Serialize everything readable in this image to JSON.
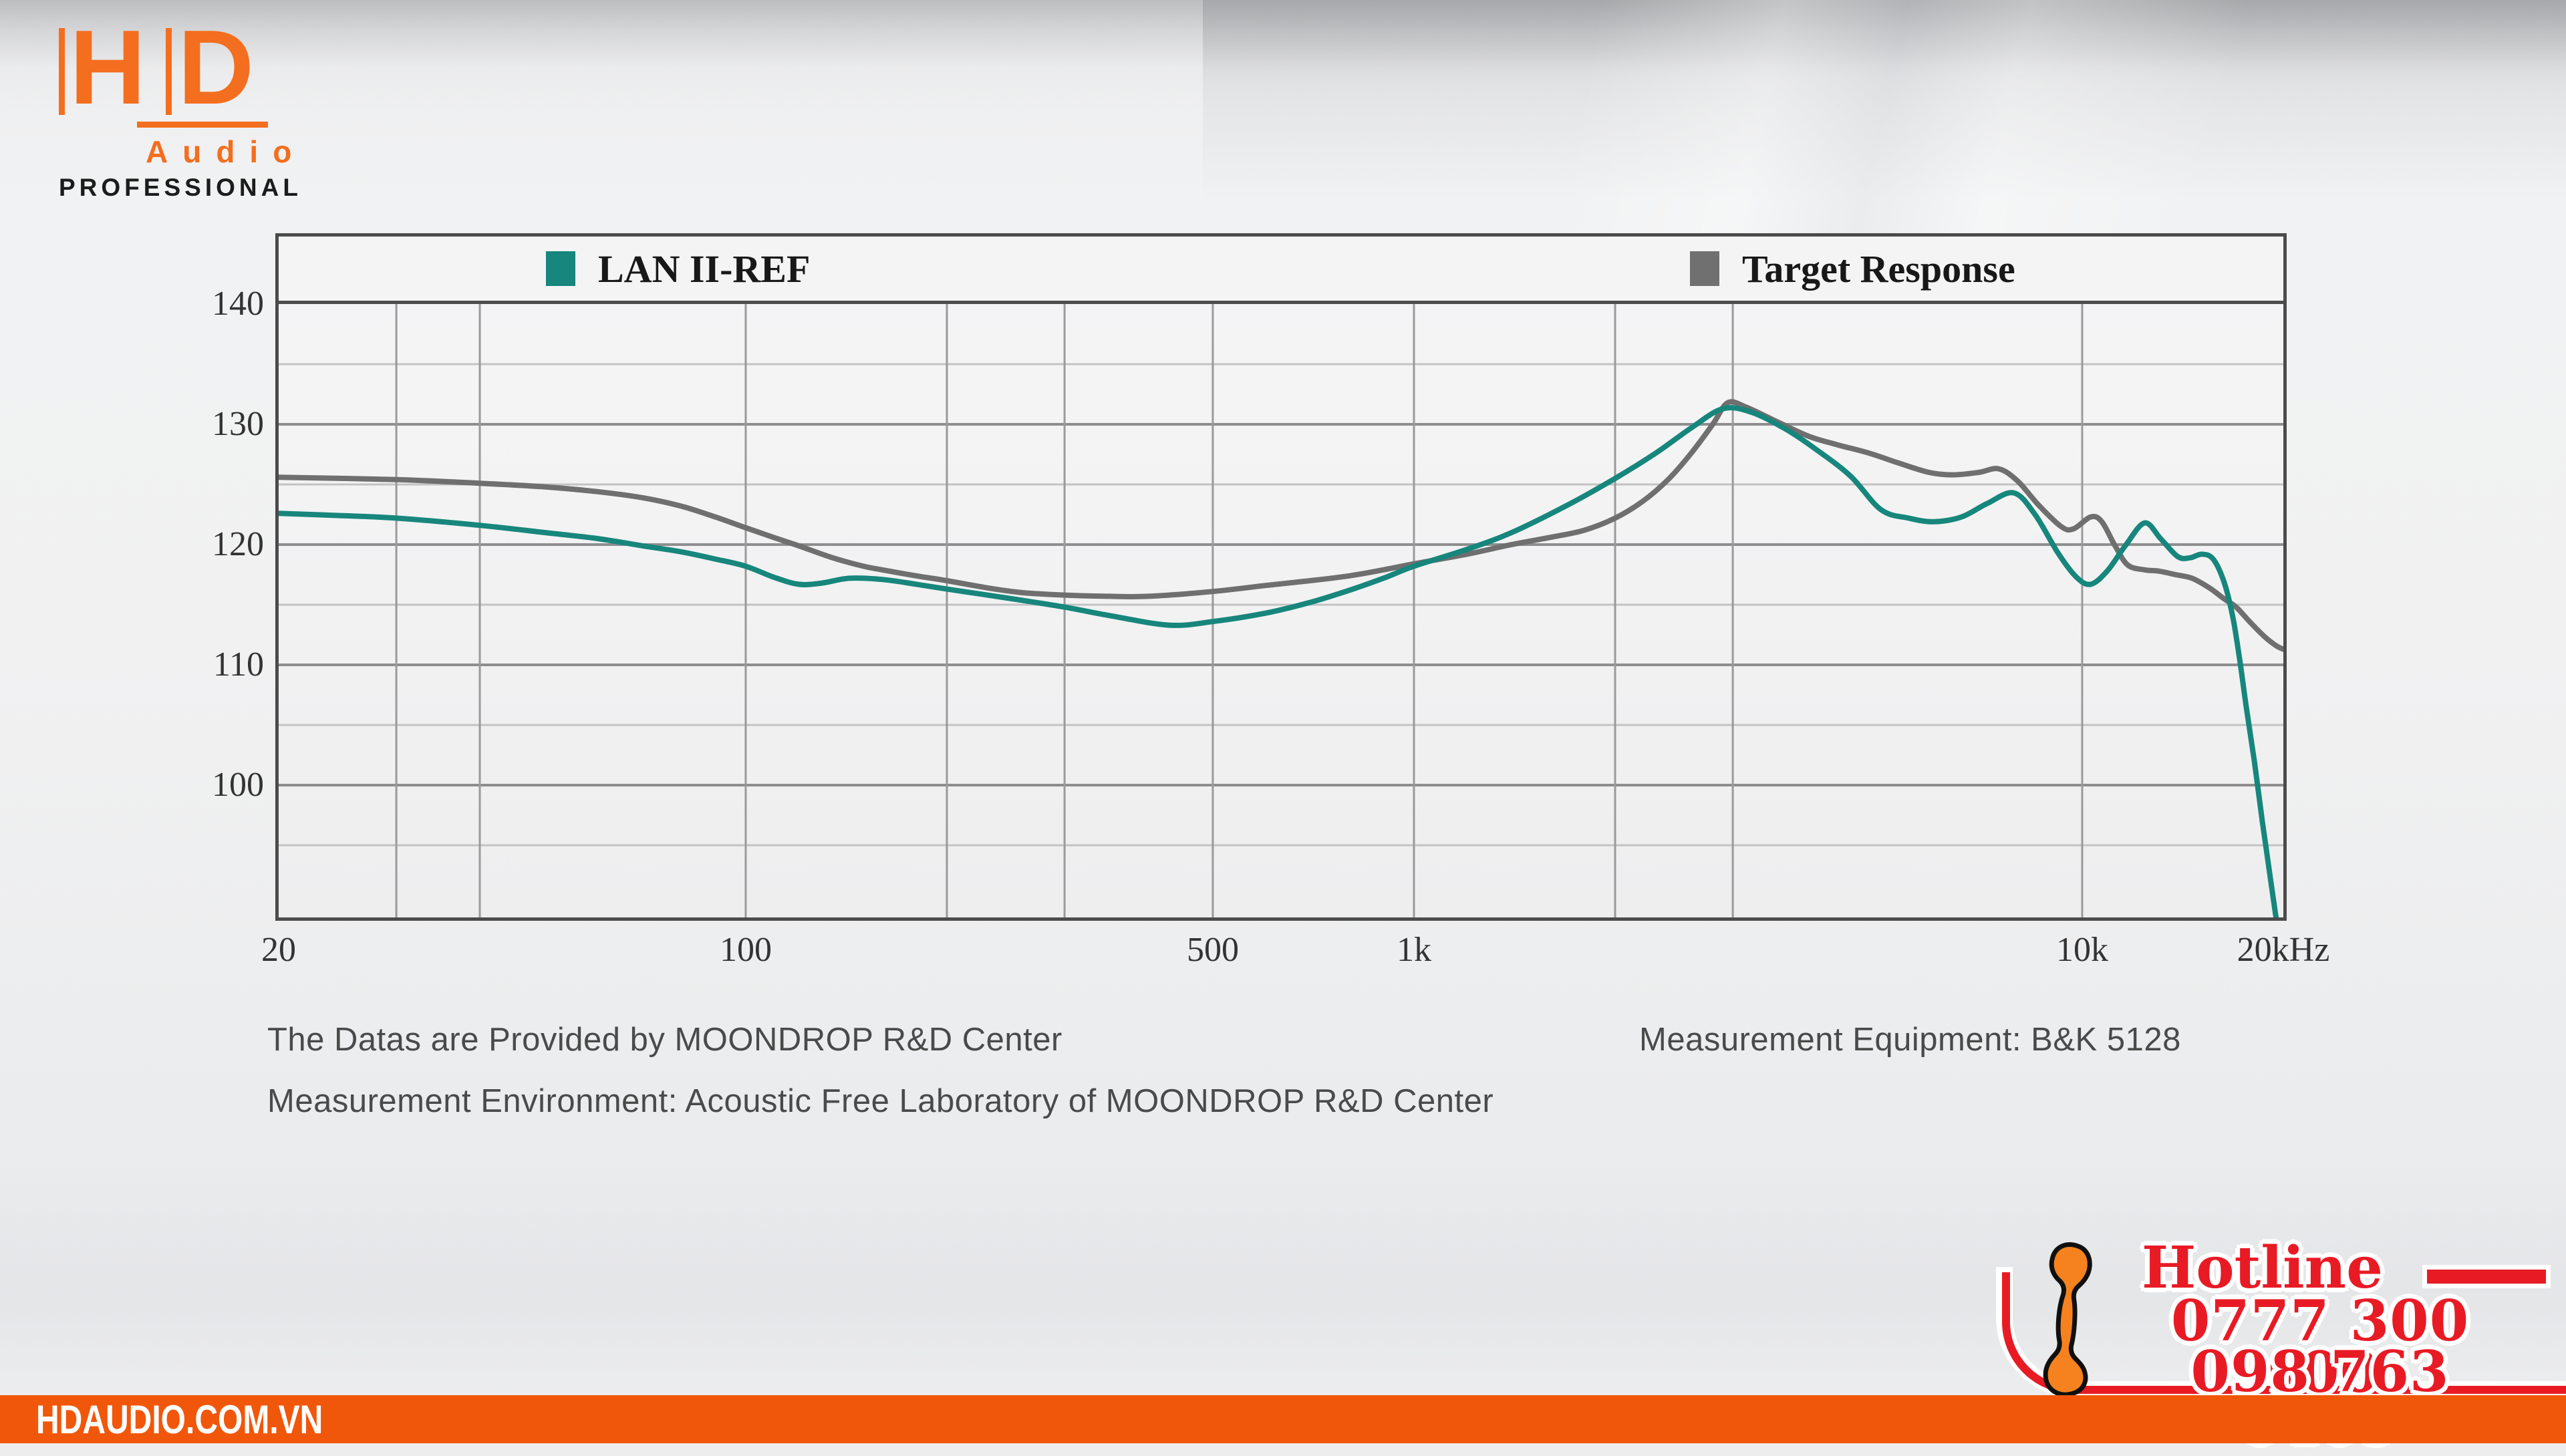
{
  "branding": {
    "hd": "HD",
    "audio": "Audio",
    "professional": "PROFESSIONAL"
  },
  "footer": {
    "website": "HDAUDIO.COM.VN"
  },
  "hotline": {
    "label": "Hotline",
    "phone1": "0777 300 400",
    "phone2": "098 763 0409"
  },
  "annotations": {
    "provided_by": "The Datas are Provided by MOONDROP R&D Center",
    "equipment": "Measurement Equipment: B&K 5128",
    "environment": "Measurement Environment: Acoustic Free Laboratory of MOONDROP R&D Center"
  },
  "colors": {
    "brand_orange": "#F36E1E",
    "bar_orange": "#F1570B",
    "hotline_red": "#E81B25",
    "phone_orange": "#F5821F",
    "grid_major": "#8e8e8e",
    "grid_minor": "#c3c3c4",
    "grid_vertical": "#9a9a9b",
    "chart_border": "#4b4b4b"
  },
  "chart_data": {
    "type": "line",
    "x_scale": "log",
    "x_unit": "Hz",
    "y_unit": "dB SPL",
    "x_range_hz": [
      20,
      20000
    ],
    "y_range_db": [
      89,
      140
    ],
    "y_major_ticks": [
      140,
      130,
      120,
      110,
      100
    ],
    "y_minor_gridlines": [
      135,
      125,
      115,
      105,
      95
    ],
    "x_gridlines_hz": [
      30,
      40,
      100,
      200,
      300,
      500,
      1000,
      2000,
      3000,
      10000
    ],
    "x_tick_labels": [
      {
        "hz": 20,
        "label": "20"
      },
      {
        "hz": 100,
        "label": "100"
      },
      {
        "hz": 500,
        "label": "500"
      },
      {
        "hz": 1000,
        "label": "1k"
      },
      {
        "hz": 10000,
        "label": "10k"
      },
      {
        "hz": 20000,
        "label": "20kHz"
      }
    ],
    "legend": [
      {
        "name": "LAN II-REF",
        "color": "#17867C"
      },
      {
        "name": "Target Response",
        "color": "#707070"
      }
    ],
    "series": [
      {
        "name": "LAN II-REF",
        "color": "#17867C",
        "points": [
          [
            20,
            122.6
          ],
          [
            25,
            122.4
          ],
          [
            30,
            122.2
          ],
          [
            40,
            121.6
          ],
          [
            50,
            121.0
          ],
          [
            60,
            120.5
          ],
          [
            70,
            119.9
          ],
          [
            80,
            119.4
          ],
          [
            90,
            118.8
          ],
          [
            100,
            118.2
          ],
          [
            110,
            117.3
          ],
          [
            120,
            116.7
          ],
          [
            130,
            116.8
          ],
          [
            143,
            117.2
          ],
          [
            160,
            117.1
          ],
          [
            180,
            116.7
          ],
          [
            200,
            116.3
          ],
          [
            250,
            115.5
          ],
          [
            300,
            114.8
          ],
          [
            350,
            114.1
          ],
          [
            430,
            113.3
          ],
          [
            500,
            113.6
          ],
          [
            600,
            114.3
          ],
          [
            700,
            115.2
          ],
          [
            800,
            116.2
          ],
          [
            900,
            117.2
          ],
          [
            1000,
            118.2
          ],
          [
            1200,
            119.6
          ],
          [
            1400,
            121.0
          ],
          [
            1700,
            123.3
          ],
          [
            2000,
            125.5
          ],
          [
            2300,
            127.6
          ],
          [
            2600,
            129.7
          ],
          [
            2900,
            131.3
          ],
          [
            3200,
            131.0
          ],
          [
            3600,
            129.6
          ],
          [
            4000,
            127.9
          ],
          [
            4500,
            125.7
          ],
          [
            5000,
            122.9
          ],
          [
            5500,
            122.2
          ],
          [
            6000,
            121.9
          ],
          [
            6600,
            122.3
          ],
          [
            7200,
            123.4
          ],
          [
            7900,
            124.3
          ],
          [
            8500,
            122.5
          ],
          [
            9200,
            119.3
          ],
          [
            9800,
            117.3
          ],
          [
            10300,
            116.7
          ],
          [
            10900,
            117.8
          ],
          [
            11600,
            119.9
          ],
          [
            12400,
            121.8
          ],
          [
            13100,
            120.5
          ],
          [
            13900,
            119.0
          ],
          [
            14500,
            118.9
          ],
          [
            15100,
            119.2
          ],
          [
            15700,
            118.8
          ],
          [
            16300,
            116.9
          ],
          [
            16800,
            114.0
          ],
          [
            17200,
            110.5
          ],
          [
            17600,
            106.5
          ],
          [
            18100,
            102.0
          ],
          [
            18600,
            97.0
          ],
          [
            19100,
            92.5
          ],
          [
            19500,
            89.0
          ]
        ]
      },
      {
        "name": "Target Response",
        "color": "#6F6F6F",
        "points": [
          [
            20,
            125.6
          ],
          [
            30,
            125.4
          ],
          [
            40,
            125.1
          ],
          [
            50,
            124.8
          ],
          [
            60,
            124.4
          ],
          [
            70,
            123.9
          ],
          [
            80,
            123.2
          ],
          [
            90,
            122.3
          ],
          [
            100,
            121.4
          ],
          [
            110,
            120.6
          ],
          [
            120,
            119.9
          ],
          [
            135,
            118.9
          ],
          [
            150,
            118.2
          ],
          [
            160,
            117.9
          ],
          [
            180,
            117.4
          ],
          [
            200,
            117.0
          ],
          [
            230,
            116.4
          ],
          [
            260,
            116.0
          ],
          [
            300,
            115.8
          ],
          [
            350,
            115.7
          ],
          [
            400,
            115.7
          ],
          [
            500,
            116.1
          ],
          [
            600,
            116.6
          ],
          [
            700,
            117.0
          ],
          [
            800,
            117.4
          ],
          [
            900,
            117.9
          ],
          [
            1000,
            118.4
          ],
          [
            1200,
            119.2
          ],
          [
            1400,
            120.0
          ],
          [
            1600,
            120.6
          ],
          [
            1800,
            121.2
          ],
          [
            2000,
            122.2
          ],
          [
            2200,
            123.6
          ],
          [
            2400,
            125.4
          ],
          [
            2600,
            127.6
          ],
          [
            2800,
            130.0
          ],
          [
            2950,
            131.8
          ],
          [
            3150,
            131.4
          ],
          [
            3500,
            130.2
          ],
          [
            3900,
            129.0
          ],
          [
            4300,
            128.3
          ],
          [
            4800,
            127.6
          ],
          [
            5300,
            126.8
          ],
          [
            5900,
            126.0
          ],
          [
            6400,
            125.8
          ],
          [
            7000,
            126.0
          ],
          [
            7500,
            126.3
          ],
          [
            8000,
            125.3
          ],
          [
            8600,
            123.3
          ],
          [
            9300,
            121.5
          ],
          [
            9700,
            121.3
          ],
          [
            10300,
            122.3
          ],
          [
            10700,
            121.9
          ],
          [
            11200,
            119.9
          ],
          [
            11700,
            118.3
          ],
          [
            12400,
            117.9
          ],
          [
            13000,
            117.8
          ],
          [
            13800,
            117.5
          ],
          [
            14600,
            117.2
          ],
          [
            15500,
            116.4
          ],
          [
            16300,
            115.5
          ],
          [
            17000,
            114.8
          ],
          [
            17800,
            113.6
          ],
          [
            18700,
            112.4
          ],
          [
            19500,
            111.6
          ],
          [
            20000,
            111.3
          ]
        ]
      }
    ]
  }
}
